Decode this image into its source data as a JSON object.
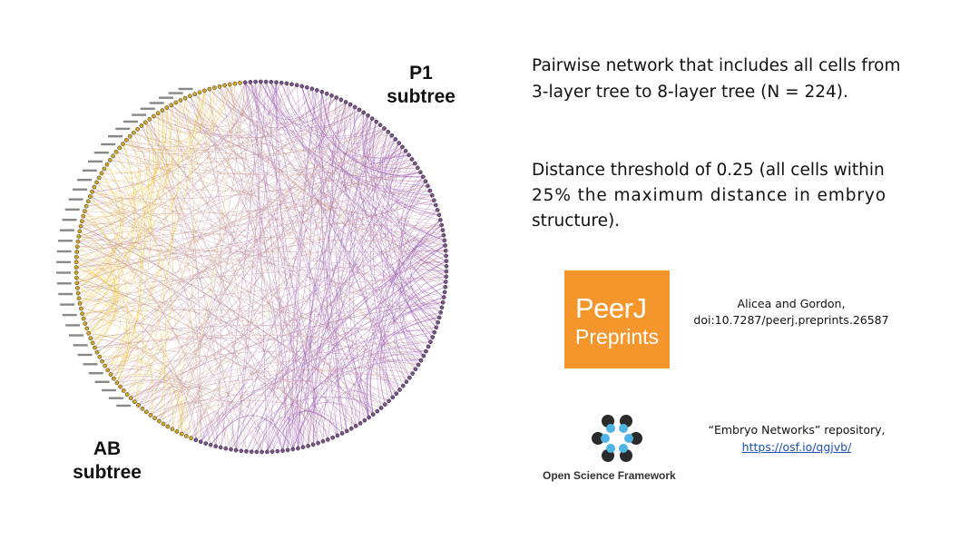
{
  "labels": {
    "p1": [
      "P1",
      "subtree"
    ],
    "ab": [
      "AB",
      "subtree"
    ]
  },
  "text": {
    "network_line1": "Pairwise network that includes all cells from",
    "network_line2": "3-layer tree to 8-layer tree (N = 224).",
    "threshold_line1": "Distance threshold of 0.25 (all cells within",
    "threshold_line2": "25% the maximum distance in embryo",
    "threshold_line3": "structure)."
  },
  "peerj": {
    "logo_line1": "PeerJ",
    "logo_line2": "Preprints",
    "authors": "Alicea and Gordon,",
    "doi": "doi:10.7287/peerj.preprints.26587",
    "color": "#f4962b"
  },
  "osf": {
    "name": "Open Science Framework",
    "repo_text": "“Embryo Networks” repository,",
    "repo_link": "https://osf.io/qgjvb/"
  },
  "colors": {
    "ab_edges": "#f2c12e",
    "p1_edges": "#9b59b6",
    "node": "#2a2a2a"
  }
}
